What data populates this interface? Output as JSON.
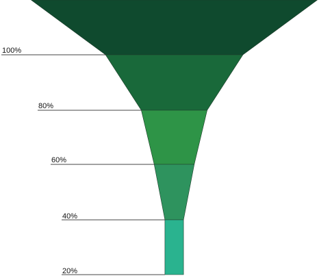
{
  "chart_data": {
    "type": "funnel",
    "title": "",
    "levels": [
      "100%",
      "80%",
      "60%",
      "40%",
      "20%"
    ],
    "stages": [
      {
        "top_width": 100,
        "bottom_width": 48,
        "color": "#0f4a2e"
      },
      {
        "top_width": 48,
        "bottom_width": 23,
        "color": "#19693a"
      },
      {
        "top_width": 23,
        "bottom_width": 14,
        "color": "#2e9447"
      },
      {
        "top_width": 14,
        "bottom_width": 6.5,
        "color": "#2e935e"
      },
      {
        "top_width": 6.5,
        "bottom_width": 6.5,
        "color": "#2ab38f"
      }
    ]
  }
}
